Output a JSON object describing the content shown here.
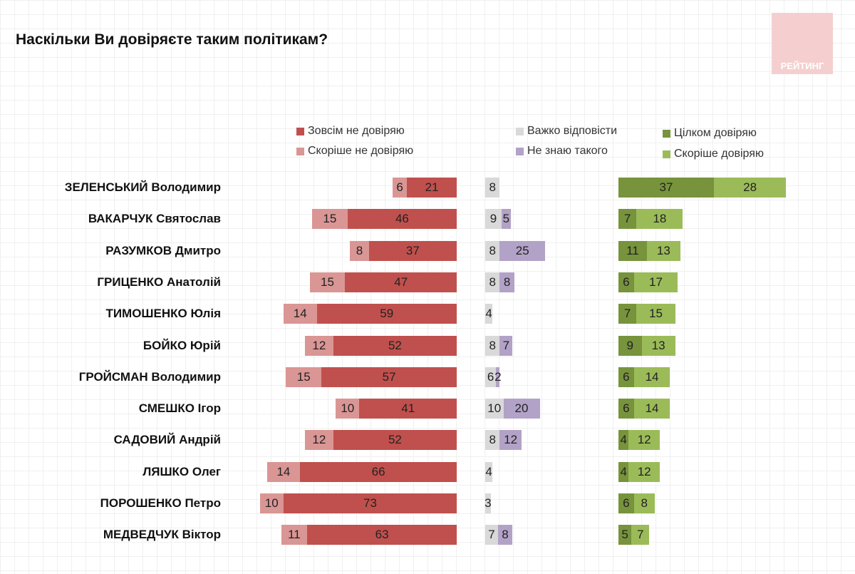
{
  "title": "Наскільки Ви довіряєте таким політикам?",
  "logo_text": "РЕЙТИНГ",
  "chart_data": {
    "type": "bar",
    "title": "Наскільки Ви довіряєте таким політикам?",
    "categories": [
      "ЗЕЛЕНСЬКИЙ Володимир",
      "ВАКАРЧУК Святослав",
      "РАЗУМКОВ Дмитро",
      "ГРИЦЕНКО Анатолій",
      "ТИМОШЕНКО Юлія",
      "БОЙКО Юрій",
      "ГРОЙСМАН Володимир",
      "СМЕШКО Ігор",
      "САДОВИЙ Андрій",
      "ЛЯШКО Олег",
      "ПОРОШЕНКО Петро",
      "МЕДВЕДЧУК Віктор"
    ],
    "series": [
      {
        "name": "Зовсім не довіряю",
        "color": "#c0504d",
        "values": [
          21,
          46,
          37,
          47,
          59,
          52,
          57,
          41,
          52,
          66,
          73,
          63
        ]
      },
      {
        "name": "Скоріше не довіряю",
        "color": "#d99694",
        "values": [
          6,
          15,
          8,
          15,
          14,
          12,
          15,
          10,
          12,
          14,
          10,
          11
        ]
      },
      {
        "name": "Важко відповісти",
        "color": "#d9d9d9",
        "values": [
          8,
          9,
          8,
          8,
          4,
          8,
          6,
          10,
          8,
          4,
          3,
          7
        ]
      },
      {
        "name": "Не знаю такого",
        "color": "#b3a2c7",
        "values": [
          0,
          5,
          25,
          8,
          0,
          7,
          2,
          20,
          12,
          0,
          0,
          8
        ]
      },
      {
        "name": "Цілком довіряю",
        "color": "#77933c",
        "values": [
          37,
          7,
          11,
          6,
          7,
          9,
          6,
          6,
          4,
          4,
          6,
          5
        ]
      },
      {
        "name": "Скоріше довіряю",
        "color": "#9bbb59",
        "values": [
          28,
          18,
          13,
          17,
          15,
          13,
          14,
          14,
          12,
          12,
          8,
          7
        ]
      }
    ]
  }
}
